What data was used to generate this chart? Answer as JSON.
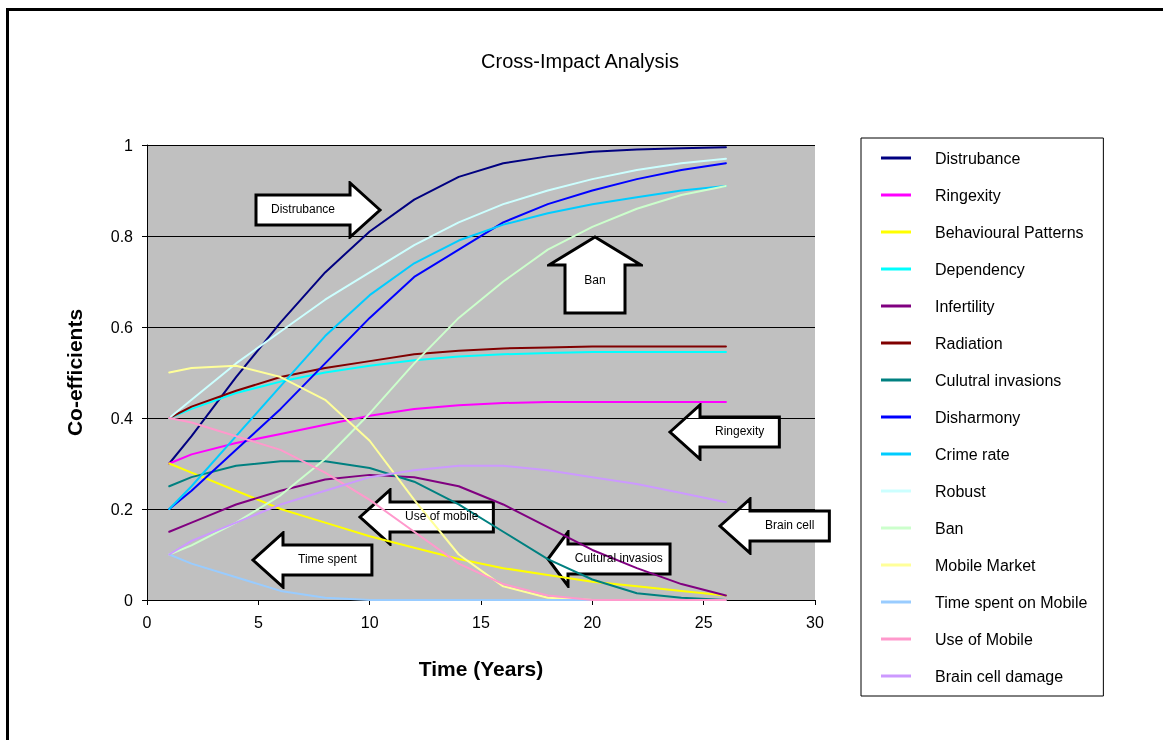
{
  "chart_data": {
    "type": "line",
    "title": "Cross-Impact Analysis",
    "xlabel": "Time (Years)",
    "ylabel": "Co-efficients",
    "x": [
      1,
      2,
      4,
      6,
      8,
      10,
      12,
      14,
      16,
      18,
      20,
      22,
      24,
      26
    ],
    "xlim": [
      0,
      30
    ],
    "xticks": [
      0,
      5,
      10,
      15,
      20,
      25,
      30
    ],
    "ylim": [
      0,
      1
    ],
    "yticks": [
      0,
      0.2,
      0.4,
      0.6,
      0.8,
      1
    ],
    "grid": "y",
    "legend": "right",
    "marker": "none",
    "line_style": "solid",
    "series": [
      {
        "name": "Distrubance",
        "color": "#000080",
        "values": [
          0.3,
          0.36,
          0.49,
          0.61,
          0.72,
          0.81,
          0.88,
          0.93,
          0.96,
          0.975,
          0.985,
          0.99,
          0.993,
          0.995
        ]
      },
      {
        "name": "Ringexity",
        "color": "#ff00ff",
        "values": [
          0.3,
          0.32,
          0.345,
          0.365,
          0.385,
          0.405,
          0.42,
          0.428,
          0.433,
          0.435,
          0.435,
          0.435,
          0.435,
          0.435
        ]
      },
      {
        "name": "Behavioural Patterns",
        "color": "#ffff00",
        "values": [
          0.3,
          0.28,
          0.24,
          0.2,
          0.17,
          0.14,
          0.115,
          0.09,
          0.07,
          0.055,
          0.04,
          0.03,
          0.02,
          0.01
        ]
      },
      {
        "name": "Dependency",
        "color": "#00ffff",
        "values": [
          0.4,
          0.42,
          0.455,
          0.48,
          0.5,
          0.515,
          0.527,
          0.535,
          0.54,
          0.543,
          0.545,
          0.545,
          0.545,
          0.545
        ]
      },
      {
        "name": "Infertility",
        "color": "#800080",
        "values": [
          0.15,
          0.17,
          0.21,
          0.24,
          0.265,
          0.275,
          0.27,
          0.25,
          0.21,
          0.16,
          0.11,
          0.07,
          0.035,
          0.01
        ]
      },
      {
        "name": "Radiation",
        "color": "#800000",
        "values": [
          0.4,
          0.425,
          0.46,
          0.49,
          0.51,
          0.525,
          0.54,
          0.548,
          0.553,
          0.555,
          0.557,
          0.557,
          0.557,
          0.557
        ]
      },
      {
        "name": "Culutral invasions",
        "color": "#008080",
        "values": [
          0.25,
          0.27,
          0.295,
          0.305,
          0.305,
          0.29,
          0.26,
          0.21,
          0.15,
          0.09,
          0.045,
          0.015,
          0.005,
          0
        ]
      },
      {
        "name": "Disharmony",
        "color": "#0000ff",
        "values": [
          0.2,
          0.24,
          0.33,
          0.42,
          0.52,
          0.62,
          0.71,
          0.77,
          0.83,
          0.87,
          0.9,
          0.925,
          0.945,
          0.96
        ]
      },
      {
        "name": "Crime rate",
        "color": "#00ccff",
        "values": [
          0.2,
          0.25,
          0.36,
          0.47,
          0.58,
          0.67,
          0.74,
          0.79,
          0.825,
          0.85,
          0.87,
          0.885,
          0.9,
          0.91
        ]
      },
      {
        "name": "Robust",
        "color": "#ccffff",
        "values": [
          0.4,
          0.44,
          0.52,
          0.59,
          0.66,
          0.72,
          0.78,
          0.83,
          0.87,
          0.9,
          0.925,
          0.945,
          0.96,
          0.97
        ]
      },
      {
        "name": "Ban",
        "color": "#ccffcc",
        "values": [
          0.1,
          0.12,
          0.17,
          0.23,
          0.31,
          0.41,
          0.52,
          0.62,
          0.7,
          0.77,
          0.82,
          0.86,
          0.89,
          0.91
        ]
      },
      {
        "name": "Mobile Market",
        "color": "#ffff99",
        "values": [
          0.5,
          0.51,
          0.515,
          0.49,
          0.44,
          0.35,
          0.22,
          0.1,
          0.03,
          0.005,
          0,
          null,
          null,
          null
        ]
      },
      {
        "name": "Time spent on Mobile",
        "color": "#99ccff",
        "values": [
          0.1,
          0.08,
          0.05,
          0.02,
          0.005,
          0,
          0,
          0,
          0,
          0,
          0,
          0,
          null,
          null
        ]
      },
      {
        "name": "Use of Mobile",
        "color": "#ff99cc",
        "values": [
          0.4,
          0.39,
          0.36,
          0.33,
          0.28,
          0.22,
          0.15,
          0.08,
          0.035,
          0.01,
          0,
          0,
          0,
          0
        ]
      },
      {
        "name": "Brain cell damage",
        "color": "#cc99ff",
        "values": [
          0.1,
          0.13,
          0.17,
          0.21,
          0.24,
          0.27,
          0.285,
          0.295,
          0.295,
          0.285,
          0.27,
          0.255,
          0.235,
          0.215
        ]
      }
    ],
    "annotations": [
      "Distrubance",
      "Ban",
      "Ringexity",
      "Use of mobile",
      "Brain cell",
      {
        "text": "Cultural invasios",
        "x": 18,
        "y": 0.09
      },
      "Time spent"
    ]
  }
}
